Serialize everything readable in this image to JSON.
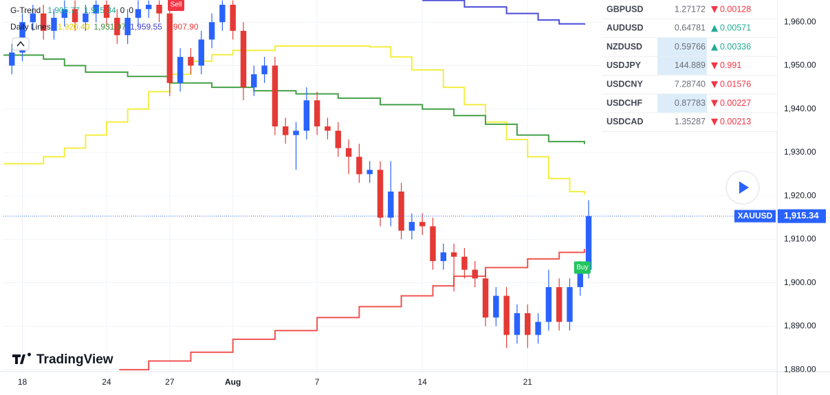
{
  "chart_data": {
    "type": "candlestick",
    "symbol": "XAUUSD",
    "price_label": "1,915.34",
    "brand": "TradingView",
    "legend_rows": [
      {
        "name": "G-Trend",
        "items": [
          {
            "label": "1,905.77",
            "color": "#22ab94"
          },
          {
            "label": "1,915.34",
            "color": "#22ab94"
          },
          {
            "label": "0",
            "color": "#131722"
          },
          {
            "label": "0",
            "color": "#131722"
          }
        ]
      },
      {
        "name": "Daily Lines",
        "items": [
          {
            "label": "1,920.40",
            "color": "#e0d000"
          },
          {
            "label": "1,931.97",
            "color": "#388e3c"
          },
          {
            "label": "1,959.55",
            "color": "#3f3fd0"
          },
          {
            "label": "1,907.90",
            "color": "#e53935"
          }
        ]
      }
    ],
    "x": [
      -0.5,
      0,
      0.5,
      1,
      1.5,
      2,
      2.5,
      3,
      3.5,
      4,
      4.5,
      5,
      5.5,
      6,
      6.5,
      7,
      7.5,
      8,
      8.5,
      9,
      9.5,
      10,
      10.5,
      11,
      11.5,
      12,
      12.5,
      13,
      13.5,
      14,
      14.5,
      15,
      15.5,
      16,
      16.5,
      17,
      17.5,
      18,
      18.5,
      19,
      19.5,
      20,
      20.5,
      21,
      21.5,
      22,
      22.5,
      23,
      23.5,
      24,
      24.5,
      25,
      25.5,
      26,
      26.5,
      26.9
    ],
    "open": [
      1950,
      1953,
      1960,
      1962,
      1958,
      1961,
      1963,
      1960,
      1962,
      1964,
      1961,
      1957,
      1961,
      1963,
      1964,
      1962,
      1946,
      1952,
      1950,
      1956,
      1960,
      1964,
      1958,
      1945,
      1948,
      1950,
      1936,
      1934,
      1935,
      1942,
      1936,
      1935,
      1931,
      1929,
      1925,
      1926,
      1915,
      1921,
      1912,
      1914,
      1913,
      1905,
      1907,
      1906,
      1903,
      1901,
      1892,
      1897,
      1888,
      1893,
      1888,
      1891,
      1899,
      1891,
      1899,
      1903
    ],
    "high": [
      1955,
      1962,
      1964,
      1964,
      1963,
      1965,
      1965,
      1964,
      1965,
      1965,
      1963,
      1963,
      1965,
      1965,
      1965,
      1964,
      1954,
      1954,
      1958,
      1962,
      1965,
      1965,
      1960,
      1950,
      1952,
      1952,
      1938,
      1937,
      1945,
      1944,
      1938,
      1937,
      1933,
      1932,
      1928,
      1928,
      1928,
      1923,
      1916,
      1916,
      1915,
      1909,
      1909,
      1908,
      1905,
      1903,
      1899,
      1899,
      1895,
      1895,
      1893,
      1903,
      1901,
      1901,
      1905,
      1919
    ],
    "low": [
      1948,
      1951,
      1958,
      1956,
      1956,
      1959,
      1958,
      1958,
      1960,
      1959,
      1955,
      1955,
      1959,
      1961,
      1960,
      1943,
      1944,
      1948,
      1948,
      1954,
      1958,
      1956,
      1942,
      1943,
      1946,
      1934,
      1932,
      1926,
      1933,
      1934,
      1933,
      1929,
      1925,
      1923,
      1923,
      1913,
      1913,
      1910,
      1910,
      1911,
      1903,
      1903,
      1898,
      1901,
      1899,
      1890,
      1890,
      1885,
      1886,
      1885,
      1886,
      1889,
      1889,
      1889,
      1897,
      1901
    ],
    "close": [
      1953,
      1960,
      1962,
      1958,
      1961,
      1963,
      1960,
      1962,
      1964,
      1961,
      1957,
      1961,
      1963,
      1964,
      1962,
      1946,
      1952,
      1950,
      1956,
      1960,
      1964,
      1958,
      1945,
      1948,
      1950,
      1936,
      1934,
      1935,
      1942,
      1936,
      1935,
      1931,
      1929,
      1925,
      1926,
      1915,
      1921,
      1912,
      1914,
      1913,
      1905,
      1907,
      1906,
      1903,
      1901,
      1892,
      1897,
      1888,
      1893,
      1888,
      1891,
      1899,
      1891,
      1899,
      1903,
      1915.34
    ],
    "up_color": "#2962ff",
    "down_color": "#e53935",
    "lines": [
      {
        "color": "#f2ee3f",
        "x": [
          -0.9,
          1,
          2,
          3,
          4,
          5,
          6,
          7,
          8,
          9,
          10,
          12,
          16.5,
          17.5,
          18.5,
          20,
          21,
          22,
          23,
          24,
          25,
          26,
          26.7
        ],
        "values": [
          1927.4,
          1929,
          1931,
          1934,
          1937,
          1940,
          1944,
          1948,
          1951,
          1952.5,
          1953.5,
          1954.5,
          1954.3,
          1952,
          1949,
          1945,
          1941,
          1937,
          1933,
          1929,
          1924,
          1921,
          1920.3
        ]
      },
      {
        "color": "#43a047",
        "x": [
          -0.9,
          1,
          2,
          3,
          5,
          7,
          9,
          11,
          13,
          15,
          17,
          19,
          20.5,
          22,
          23.5,
          25,
          26.7
        ],
        "values": [
          1952.4,
          1951.5,
          1950,
          1948.5,
          1947.5,
          1946,
          1945,
          1944.2,
          1943.5,
          1942.5,
          1941,
          1940,
          1938.5,
          1936.5,
          1934,
          1932.5,
          1931.9
        ]
      },
      {
        "color": "#ef5350",
        "x": [
          4.6,
          6,
          8,
          10,
          12,
          14,
          16,
          18,
          19.5,
          20.5,
          22,
          24,
          25.5,
          26.7
        ],
        "values": [
          1880,
          1882,
          1884,
          1887,
          1889,
          1892,
          1894.5,
          1897,
          1899.3,
          1901.5,
          1903.5,
          1905.5,
          1907,
          1907.8
        ]
      },
      {
        "color": "#4a4ad8",
        "x": [
          19,
          21,
          23,
          24.5,
          25.5,
          26.7
        ],
        "values": [
          1965,
          1963.5,
          1962,
          1960.5,
          1959.6,
          1959.4
        ]
      }
    ],
    "signals": [
      {
        "label": "Sell",
        "x": 7.3,
        "value": 1964,
        "color": "#f23645"
      },
      {
        "label": "Buy",
        "x": 26.6,
        "value": 1903.5,
        "color": "#22c55e"
      }
    ],
    "xlim": [
      -0.9,
      35.85
    ],
    "ylim": [
      1879.7,
      1965.1
    ],
    "xticks": [
      {
        "value": 0,
        "label": "18"
      },
      {
        "value": 4,
        "label": "24"
      },
      {
        "value": 7,
        "label": "27"
      },
      {
        "value": 10,
        "label": "Aug"
      },
      {
        "value": 14,
        "label": "7"
      },
      {
        "value": 19,
        "label": "14"
      },
      {
        "value": 24,
        "label": "21"
      }
    ],
    "yticks": [
      {
        "value": 1880,
        "label": "1,880.00"
      },
      {
        "value": 1890,
        "label": "1,890.00"
      },
      {
        "value": 1900,
        "label": "1,900.00"
      },
      {
        "value": 1910,
        "label": "1,910.00"
      },
      {
        "value": 1920,
        "label": "1,920.00"
      },
      {
        "value": 1930,
        "label": "1,930.00"
      },
      {
        "value": 1940,
        "label": "1,940.00"
      },
      {
        "value": 1950,
        "label": "1,950.00"
      },
      {
        "value": 1960,
        "label": "1,960.00"
      }
    ],
    "grid": true,
    "watchlist": [
      {
        "symbol": "GBPUSD",
        "last": "1.27172",
        "change": "0.00128",
        "direction": "down",
        "highlight": false
      },
      {
        "symbol": "AUDUSD",
        "last": "0.64781",
        "change": "0.00571",
        "direction": "up",
        "highlight": false
      },
      {
        "symbol": "NZDUSD",
        "last": "0.59766",
        "change": "0.00336",
        "direction": "up",
        "highlight": true
      },
      {
        "symbol": "USDJPY",
        "last": "144.889",
        "change": "0.991",
        "direction": "down",
        "highlight": true
      },
      {
        "symbol": "USDCNY",
        "last": "7.28740",
        "change": "0.01576",
        "direction": "down",
        "highlight": false
      },
      {
        "symbol": "USDCHF",
        "last": "0.87783",
        "change": "0.00227",
        "direction": "down",
        "highlight": true
      },
      {
        "symbol": "USDCAD",
        "last": "1.35287",
        "change": "0.00213",
        "direction": "down",
        "highlight": false
      }
    ]
  }
}
